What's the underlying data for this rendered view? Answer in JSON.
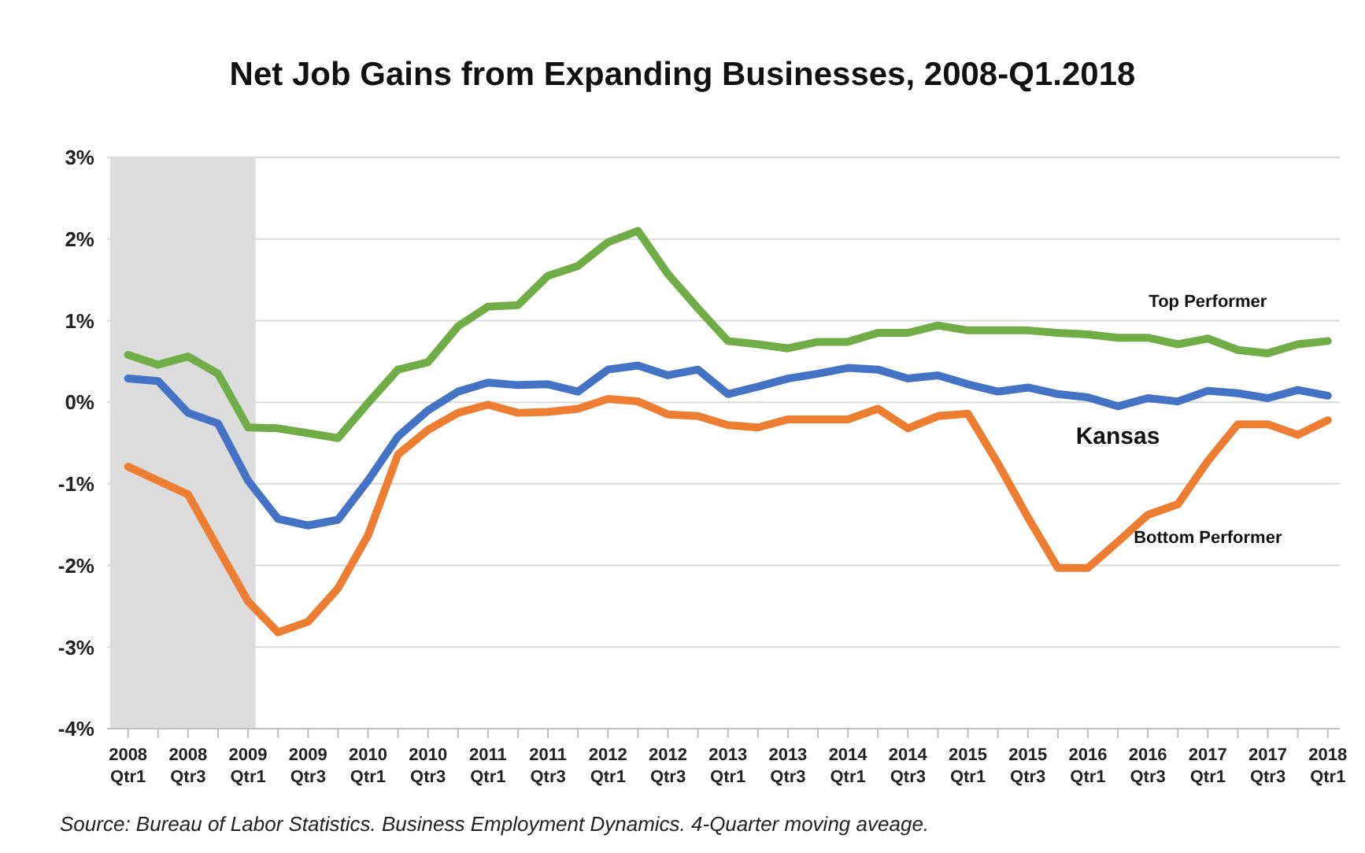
{
  "chart_data": {
    "type": "line",
    "title": "Net Job Gains from Expanding Businesses, 2008-Q1.2018",
    "categories": [
      "2008 Qtr1",
      null,
      "2008 Qtr3",
      null,
      "2009 Qtr1",
      null,
      "2009 Qtr3",
      null,
      "2010 Qtr1",
      null,
      "2010 Qtr3",
      null,
      "2011 Qtr1",
      null,
      "2011 Qtr3",
      null,
      "2012 Qtr1",
      null,
      "2012 Qtr3",
      null,
      "2013 Qtr1",
      null,
      "2013 Qtr3",
      null,
      "2014 Qtr1",
      null,
      "2014 Qtr3",
      null,
      "2015 Qtr1",
      null,
      "2015 Qtr3",
      null,
      "2016 Qtr1",
      null,
      "2016 Qtr3",
      null,
      "2017 Qtr1",
      null,
      "2017 Qtr3",
      null,
      "2018 Qtr1"
    ],
    "series": [
      {
        "name": "Top Performer",
        "color": "#70ad47",
        "values": [
          0.58,
          0.46,
          0.56,
          0.35,
          -0.31,
          -0.32,
          -0.38,
          -0.44,
          -0.01,
          0.4,
          0.49,
          0.93,
          1.17,
          1.19,
          1.55,
          1.67,
          1.96,
          2.1,
          1.57,
          1.15,
          0.75,
          0.71,
          0.66,
          0.74,
          0.74,
          0.85,
          0.85,
          0.94,
          0.88,
          0.88,
          0.88,
          0.85,
          0.83,
          0.79,
          0.79,
          0.71,
          0.78,
          0.64,
          0.6,
          0.71,
          0.75
        ]
      },
      {
        "name": "Kansas",
        "color": "#4472c4",
        "values": [
          0.29,
          0.26,
          -0.13,
          -0.26,
          -0.96,
          -1.43,
          -1.51,
          -1.44,
          -0.96,
          -0.42,
          -0.1,
          0.13,
          0.24,
          0.21,
          0.22,
          0.13,
          0.4,
          0.45,
          0.33,
          0.4,
          0.1,
          0.19,
          0.29,
          0.35,
          0.42,
          0.4,
          0.29,
          0.33,
          0.22,
          0.13,
          0.18,
          0.1,
          0.06,
          -0.05,
          0.05,
          0.01,
          0.14,
          0.11,
          0.05,
          0.15,
          0.08
        ]
      },
      {
        "name": "Bottom Performer",
        "color": "#ed7d31",
        "values": [
          -0.79,
          -0.96,
          -1.13,
          -1.79,
          -2.44,
          -2.82,
          -2.69,
          -2.28,
          -1.63,
          -0.64,
          -0.34,
          -0.13,
          -0.03,
          -0.13,
          -0.12,
          -0.08,
          0.04,
          0.01,
          -0.15,
          -0.17,
          -0.28,
          -0.31,
          -0.21,
          -0.21,
          -0.21,
          -0.08,
          -0.32,
          -0.17,
          -0.14,
          -0.75,
          -1.41,
          -2.03,
          -2.03,
          -1.71,
          -1.38,
          -1.25,
          -0.72,
          -0.27,
          -0.27,
          -0.4,
          -0.22
        ]
      }
    ],
    "ylim": [
      -4,
      3
    ],
    "yticks": [
      {
        "value": -4,
        "label": "-4%"
      },
      {
        "value": -3,
        "label": "-3%"
      },
      {
        "value": -2,
        "label": "-2%"
      },
      {
        "value": -1,
        "label": "-1%"
      },
      {
        "value": 0,
        "label": "0%"
      },
      {
        "value": 1,
        "label": "1%"
      },
      {
        "value": 2,
        "label": "2%"
      },
      {
        "value": 3,
        "label": "3%"
      }
    ],
    "grid": "y",
    "legend": false,
    "marker": "none",
    "line_style": "solid",
    "bands": [
      {
        "axis": "x",
        "from": "2008 Qtr1",
        "to": "2009 Qtr1",
        "color": "#dcdcdc"
      }
    ],
    "annotations": [
      "Source: Bureau of Labor Statistics. Business Employment Dynamics. 4-Quarter moving aveage."
    ]
  }
}
